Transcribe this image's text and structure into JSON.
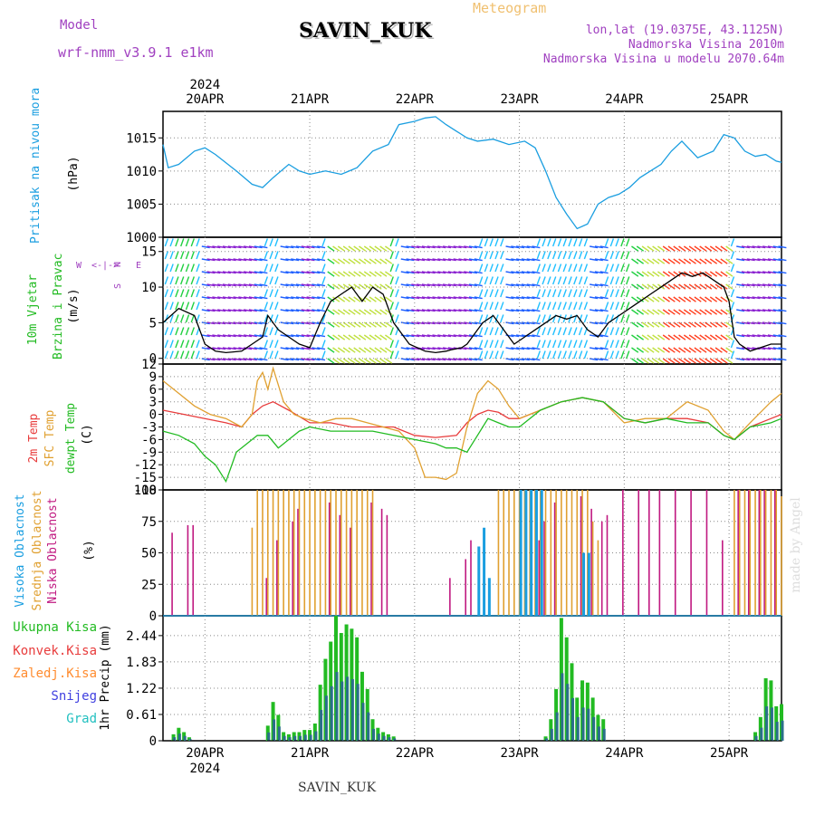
{
  "header": {
    "model_label": "Model",
    "model_name": "wrf-nmm_v3.9.1 e1km",
    "title": "SAVIN_KUK",
    "meteogram_label": "Meteogram",
    "lonlat": "lon,lat (19.0375E, 43.1125N)",
    "altitude": "Nadmorska Visina 2010m",
    "model_altitude": "Nadmorska Visina u modelu 2070.64m"
  },
  "footer": {
    "station": "SAVIN_KUK",
    "credit": "made by Angel"
  },
  "time_axis": {
    "year": "2024",
    "days": [
      "20APR",
      "21APR",
      "22APR",
      "23APR",
      "24APR",
      "25APR"
    ],
    "start_day": 19.6,
    "end_day": 25.5
  },
  "colors": {
    "pressure": "#1a9ee0",
    "t2m": "#e83c3c",
    "sfc": "#e0a030",
    "dewpt": "#22bb22",
    "high_cloud": "#1a9ee0",
    "mid_cloud": "#e0a030",
    "low_cloud": "#c01880",
    "total_precip": "#22bb22",
    "conv_precip": "#e83c3c",
    "frozen_precip": "#ff8c30",
    "snow": "#4040e0",
    "graupel": "#22c0c0",
    "purple_text": "#a040c0"
  },
  "panels": {
    "pressure": {
      "labels": [
        "Pritisak na nivou mora",
        "(hPa)"
      ],
      "ticks": [
        "1015",
        "1010",
        "1005",
        "1000"
      ]
    },
    "wind": {
      "labels": [
        "10m Vjetar",
        "Brzina i Pravac",
        "(m/s)"
      ],
      "compass": [
        "N",
        "W",
        "<-|->",
        "E",
        "S"
      ],
      "ticks": [
        "15",
        "10",
        "5",
        "0"
      ]
    },
    "temp": {
      "labels": [
        "2m Temp",
        "SFC Temp",
        "dewpt Temp",
        "(C)"
      ],
      "ticks": [
        "12",
        "9",
        "6",
        "3",
        "0",
        "-3",
        "-6",
        "-9",
        "-12",
        "-15",
        "-18"
      ]
    },
    "cloud": {
      "labels": [
        "Visoka Oblacnost",
        "Srednja Oblacnost",
        "Niska Oblacnost",
        "(%)"
      ],
      "ticks": [
        "100",
        "75",
        "50",
        "25",
        "0"
      ]
    },
    "precip": {
      "labels": [
        "Ukupna Kisa",
        "Konvek.Kisa",
        "Zaledj.Kisa",
        "Snijeg",
        "Grad",
        "1hr Precip (mm)"
      ],
      "ticks": [
        "2.44",
        "1.83",
        "1.22",
        "0.61",
        "0"
      ]
    }
  },
  "chart_data": [
    {
      "type": "line",
      "ylabel": "Pritisak na nivou mora (hPa)",
      "ylim": [
        1000,
        1019
      ],
      "x_unit": "day of April 2024",
      "series": [
        {
          "x": [
            19.6,
            19.65,
            19.75,
            19.9,
            20.0,
            20.1,
            20.3,
            20.45,
            20.55,
            20.65,
            20.8,
            20.9,
            21.0,
            21.15,
            21.3,
            21.45,
            21.6,
            21.75,
            21.85,
            22.0,
            22.1,
            22.2,
            22.3,
            22.4,
            22.5,
            22.6,
            22.75,
            22.9,
            23.05,
            23.15,
            23.25,
            23.35,
            23.45,
            23.55,
            23.65,
            23.75,
            23.85,
            23.95,
            24.05,
            24.15,
            24.25,
            24.35,
            24.45,
            24.55,
            24.7,
            24.85,
            24.95,
            25.05,
            25.15,
            25.25,
            25.35,
            25.45,
            25.5
          ],
          "y": [
            1014,
            1010.5,
            1011,
            1013,
            1013.5,
            1012.5,
            1010,
            1008,
            1007.5,
            1009,
            1011,
            1010,
            1009.5,
            1010,
            1009.5,
            1010.5,
            1013,
            1014,
            1017,
            1017.5,
            1018,
            1018.2,
            1017,
            1016,
            1015,
            1014.5,
            1014.8,
            1014,
            1014.5,
            1013.5,
            1010,
            1006,
            1003.5,
            1001.3,
            1002,
            1005,
            1006,
            1006.5,
            1007.5,
            1009,
            1010,
            1011,
            1013,
            1014.5,
            1012,
            1013,
            1015.5,
            1015,
            1013,
            1012.2,
            1012.5,
            1011.5,
            1011.3
          ]
        }
      ]
    },
    {
      "type": "line",
      "ylabel": "10m Vjetar Brzina i Pravac (m/s)",
      "ylim": [
        -0.8,
        17
      ],
      "x_unit": "day of April 2024",
      "series": [
        {
          "x": [
            19.6,
            19.75,
            19.9,
            20.0,
            20.1,
            20.2,
            20.35,
            20.45,
            20.55,
            20.6,
            20.7,
            20.8,
            20.9,
            21.0,
            21.1,
            21.2,
            21.3,
            21.4,
            21.5,
            21.6,
            21.7,
            21.8,
            21.95,
            22.1,
            22.2,
            22.3,
            22.35,
            22.45,
            22.5,
            22.55,
            22.65,
            22.75,
            22.85,
            22.95,
            23.05,
            23.15,
            23.25,
            23.35,
            23.45,
            23.55,
            23.65,
            23.75,
            23.85,
            23.95,
            24.05,
            24.15,
            24.25,
            24.35,
            24.45,
            24.55,
            24.65,
            24.75,
            24.85,
            24.95,
            25.0,
            25.05,
            25.1,
            25.2,
            25.3,
            25.4,
            25.5
          ],
          "y": [
            5,
            7,
            6,
            2,
            1,
            0.8,
            1,
            2,
            3,
            6,
            4,
            3,
            2,
            1.5,
            5,
            8,
            9,
            10,
            8,
            10,
            9,
            5,
            2,
            1,
            0.8,
            1,
            1.2,
            1.5,
            2,
            3,
            5,
            6,
            4,
            2,
            3,
            4,
            5,
            6,
            5.5,
            6,
            4,
            3,
            5,
            6,
            7,
            8,
            9,
            10,
            11,
            12,
            11.5,
            12,
            11,
            10,
            8,
            3,
            2,
            1,
            1.5,
            2,
            2
          ]
        }
      ]
    },
    {
      "type": "line",
      "ylabel": "Temp (C)",
      "ylim": [
        -18,
        12
      ],
      "x_unit": "day of April 2024",
      "series": [
        {
          "name": "2m Temp",
          "x": [
            19.6,
            19.8,
            20.0,
            20.2,
            20.35,
            20.45,
            20.55,
            20.65,
            20.8,
            21.0,
            21.2,
            21.4,
            21.6,
            21.8,
            22.0,
            22.2,
            22.4,
            22.5,
            22.6,
            22.7,
            22.8,
            22.9,
            23.0,
            23.2,
            23.4,
            23.6,
            23.8,
            24.0,
            24.2,
            24.4,
            24.6,
            24.8,
            24.95,
            25.05,
            25.2,
            25.4,
            25.5
          ],
          "y": [
            1,
            0,
            -1,
            -2,
            -3,
            0,
            2,
            3,
            1,
            -2,
            -2,
            -3,
            -3,
            -3,
            -5,
            -5.5,
            -5,
            -2,
            0,
            1,
            0.5,
            -1,
            -1,
            1,
            3,
            4,
            3,
            -1,
            -2,
            -1,
            -1,
            -2,
            -5,
            -6,
            -3,
            -1,
            0
          ]
        },
        {
          "name": "SFC Temp",
          "x": [
            19.6,
            19.75,
            19.9,
            20.05,
            20.2,
            20.35,
            20.45,
            20.5,
            20.55,
            20.6,
            20.65,
            20.75,
            20.85,
            20.95,
            21.1,
            21.25,
            21.4,
            21.55,
            21.7,
            21.85,
            22.0,
            22.1,
            22.2,
            22.3,
            22.4,
            22.5,
            22.6,
            22.7,
            22.8,
            22.9,
            23.0,
            23.2,
            23.4,
            23.6,
            23.8,
            24.0,
            24.2,
            24.4,
            24.6,
            24.8,
            24.95,
            25.05,
            25.2,
            25.4,
            25.5
          ],
          "y": [
            8,
            5,
            2,
            0,
            -1,
            -3,
            0,
            8,
            10,
            6,
            11,
            3,
            0,
            -1,
            -2,
            -1,
            -1,
            -2,
            -3,
            -4,
            -8,
            -15,
            -15,
            -15.5,
            -14,
            -3,
            5,
            8,
            6,
            2,
            -1,
            1,
            3,
            4,
            3,
            -2,
            -1,
            -1,
            3,
            1,
            -4,
            -6,
            -2,
            3,
            5
          ]
        },
        {
          "name": "dewpt Temp",
          "x": [
            19.6,
            19.75,
            19.9,
            20.0,
            20.1,
            20.2,
            20.3,
            20.4,
            20.5,
            20.6,
            20.7,
            20.8,
            20.9,
            21.0,
            21.2,
            21.4,
            21.6,
            21.8,
            22.0,
            22.2,
            22.3,
            22.4,
            22.5,
            22.6,
            22.7,
            22.8,
            22.9,
            23.0,
            23.2,
            23.4,
            23.6,
            23.8,
            24.0,
            24.2,
            24.4,
            24.6,
            24.8,
            24.95,
            25.05,
            25.2,
            25.4,
            25.5
          ],
          "y": [
            -4,
            -5,
            -7,
            -10,
            -12,
            -16,
            -9,
            -7,
            -5,
            -5,
            -8,
            -6,
            -4,
            -3,
            -4,
            -4,
            -4,
            -5,
            -6,
            -7,
            -8,
            -8,
            -9,
            -5,
            -1,
            -2,
            -3,
            -3,
            1,
            3,
            4,
            3,
            -1,
            -2,
            -1,
            -2,
            -2,
            -5,
            -6,
            -3,
            -2,
            -1
          ]
        }
      ]
    },
    {
      "type": "bar",
      "ylabel": "Oblacnost (%)",
      "ylim": [
        0,
        100
      ],
      "x_unit": "day of April 2024",
      "series": [
        {
          "name": "Niska Oblacnost",
          "x": [
            19.7,
            19.85,
            19.9,
            20.6,
            20.7,
            20.85,
            20.9,
            21.2,
            21.3,
            21.4,
            21.6,
            21.7,
            21.75,
            22.35,
            22.5,
            22.55,
            23.2,
            23.25,
            23.35,
            23.6,
            23.7,
            23.8,
            23.85,
            24.0,
            24.15,
            24.25,
            24.35,
            24.5,
            24.65,
            24.8,
            24.95,
            25.1,
            25.2,
            25.3,
            25.35,
            25.45
          ],
          "values": [
            66,
            72,
            72,
            30,
            60,
            75,
            85,
            90,
            80,
            70,
            90,
            85,
            80,
            30,
            45,
            60,
            60,
            75,
            90,
            95,
            85,
            75,
            80,
            100,
            100,
            100,
            100,
            100,
            100,
            100,
            60,
            100,
            100,
            100,
            100,
            100
          ]
        },
        {
          "name": "Srednja Oblacnost",
          "x": [
            20.45,
            20.5,
            20.55,
            20.6,
            20.65,
            20.7,
            20.75,
            20.8,
            20.85,
            20.9,
            20.95,
            21.0,
            21.05,
            21.1,
            21.15,
            21.2,
            21.25,
            21.3,
            21.35,
            21.4,
            21.45,
            21.5,
            21.55,
            21.6,
            22.8,
            22.85,
            22.9,
            22.95,
            23.0,
            23.05,
            23.1,
            23.15,
            23.2,
            23.25,
            23.3,
            23.35,
            23.4,
            23.45,
            23.5,
            23.55,
            23.6,
            23.65,
            23.7,
            23.75,
            25.05,
            25.1,
            25.15,
            25.2,
            25.25,
            25.3,
            25.35,
            25.4,
            25.45,
            25.5
          ],
          "values": [
            70,
            100,
            100,
            100,
            100,
            100,
            100,
            100,
            100,
            100,
            100,
            100,
            100,
            100,
            100,
            100,
            100,
            100,
            100,
            100,
            100,
            100,
            100,
            100,
            100,
            100,
            100,
            100,
            100,
            100,
            100,
            100,
            100,
            100,
            100,
            100,
            100,
            100,
            100,
            100,
            100,
            100,
            75,
            60,
            100,
            100,
            100,
            100,
            100,
            100,
            100,
            100,
            100,
            95
          ]
        },
        {
          "name": "Visoka Oblacnost",
          "x": [
            22.6,
            22.65,
            22.7,
            23.0,
            23.05,
            23.1,
            23.15,
            23.2,
            23.6,
            23.65
          ],
          "values": [
            55,
            70,
            30,
            100,
            100,
            100,
            100,
            100,
            50,
            50
          ]
        }
      ]
    },
    {
      "type": "bar",
      "ylabel": "1hr Precip (mm)",
      "ylim": [
        0,
        2.9
      ],
      "x_unit": "day of April 2024",
      "series": [
        {
          "name": "Ukupna Kisa",
          "x": [
            19.7,
            19.75,
            19.8,
            19.85,
            20.6,
            20.65,
            20.7,
            20.75,
            20.8,
            20.85,
            20.9,
            20.95,
            21.0,
            21.05,
            21.1,
            21.15,
            21.2,
            21.25,
            21.3,
            21.35,
            21.4,
            21.45,
            21.5,
            21.55,
            21.6,
            21.65,
            21.7,
            21.75,
            21.8,
            23.25,
            23.3,
            23.35,
            23.4,
            23.45,
            23.5,
            23.55,
            23.6,
            23.65,
            23.7,
            23.75,
            23.8,
            25.25,
            25.3,
            25.35,
            25.4,
            25.45,
            25.5
          ],
          "values": [
            0.15,
            0.3,
            0.2,
            0.08,
            0.35,
            0.9,
            0.6,
            0.2,
            0.15,
            0.2,
            0.2,
            0.25,
            0.25,
            0.4,
            1.3,
            1.9,
            2.3,
            2.9,
            2.5,
            2.7,
            2.6,
            2.4,
            1.6,
            1.2,
            0.5,
            0.3,
            0.2,
            0.15,
            0.1,
            0.1,
            0.5,
            1.2,
            2.85,
            2.4,
            1.8,
            1.0,
            1.4,
            1.35,
            1.0,
            0.6,
            0.5,
            0.2,
            0.55,
            1.45,
            1.4,
            0.8,
            0.85
          ]
        }
      ]
    }
  ]
}
